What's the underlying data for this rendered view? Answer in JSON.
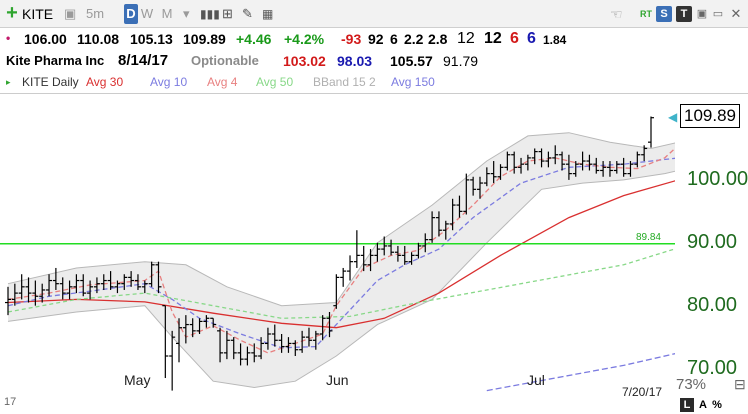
{
  "toolbar": {
    "symbol": "KITE",
    "add_icon": "plus-icon",
    "periods": [
      "5m",
      "D",
      "W",
      "M"
    ],
    "active_period": "D",
    "right_labels": [
      "RT",
      "S",
      "T"
    ]
  },
  "quote": {
    "open": "106.00",
    "high": "110.08",
    "low": "105.13",
    "close": "109.89",
    "change": "+4.46",
    "change_pct": "+4.2%",
    "v1": "-93",
    "v2": "92",
    "v3": "6",
    "v4": "2.2",
    "v5": "2.8",
    "v6": "12",
    "v7": "12",
    "v8": "6",
    "v9": "6",
    "v10": "1.84"
  },
  "info": {
    "name": "Kite Pharma Inc",
    "date": "8/14/17",
    "optionable": "Optionable",
    "a": "103.02",
    "b": "98.03",
    "c": "105.57",
    "d": "91.79"
  },
  "legend": {
    "title": "KITE Daily",
    "items": [
      "Avg 30",
      "Avg 10",
      "Avg 4",
      "Avg 50",
      "BBand 15 2",
      "Avg 150"
    ],
    "colors": [
      "#d93030",
      "#7b7be0",
      "#e88080",
      "#88d888",
      "#b0b0b0",
      "#7b7be0"
    ]
  },
  "chart_data": {
    "type": "ohlc",
    "line_label": "89.84",
    "line_value": 89.84,
    "price_label": "109.89",
    "y_ticks": [
      "100.00",
      "90.00",
      "80.00",
      "70.00"
    ],
    "x_ticks": [
      "May",
      "Jun",
      "Jul"
    ],
    "date_label": "7/20/17",
    "ylim": [
      65.8,
      113.5
    ],
    "bars": [
      {
        "o": 80.5,
        "h": 83.0,
        "l": 78.5,
        "c": 81.0
      },
      {
        "o": 81.0,
        "h": 83.5,
        "l": 80.0,
        "c": 82.0
      },
      {
        "o": 82.0,
        "h": 85.0,
        "l": 81.0,
        "c": 83.0
      },
      {
        "o": 83.0,
        "h": 84.5,
        "l": 80.5,
        "c": 82.0
      },
      {
        "o": 82.0,
        "h": 84.0,
        "l": 80.0,
        "c": 81.5
      },
      {
        "o": 81.5,
        "h": 83.5,
        "l": 80.5,
        "c": 82.5
      },
      {
        "o": 82.5,
        "h": 85.0,
        "l": 81.5,
        "c": 84.0
      },
      {
        "o": 84.0,
        "h": 86.0,
        "l": 82.5,
        "c": 83.5
      },
      {
        "o": 83.5,
        "h": 84.5,
        "l": 81.0,
        "c": 82.0
      },
      {
        "o": 82.0,
        "h": 84.0,
        "l": 81.0,
        "c": 83.0
      },
      {
        "o": 83.0,
        "h": 85.0,
        "l": 82.0,
        "c": 84.0
      },
      {
        "o": 84.0,
        "h": 85.0,
        "l": 81.5,
        "c": 82.0
      },
      {
        "o": 82.0,
        "h": 84.0,
        "l": 81.0,
        "c": 83.0
      },
      {
        "o": 83.0,
        "h": 84.5,
        "l": 82.0,
        "c": 83.5
      },
      {
        "o": 83.5,
        "h": 85.0,
        "l": 82.5,
        "c": 84.0
      },
      {
        "o": 84.0,
        "h": 85.5,
        "l": 82.5,
        "c": 83.0
      },
      {
        "o": 83.0,
        "h": 84.0,
        "l": 82.0,
        "c": 83.5
      },
      {
        "o": 83.5,
        "h": 85.0,
        "l": 82.5,
        "c": 84.5
      },
      {
        "o": 84.5,
        "h": 85.5,
        "l": 83.0,
        "c": 84.0
      },
      {
        "o": 84.0,
        "h": 85.0,
        "l": 82.5,
        "c": 83.0
      },
      {
        "o": 83.0,
        "h": 84.0,
        "l": 82.0,
        "c": 83.5
      },
      {
        "o": 83.5,
        "h": 87.0,
        "l": 83.0,
        "c": 86.5
      },
      {
        "o": 86.5,
        "h": 87.0,
        "l": 82.0,
        "c": 83.0
      },
      {
        "o": 80.0,
        "h": 80.0,
        "l": 68.5,
        "c": 72.0
      },
      {
        "o": 72.0,
        "h": 76.0,
        "l": 66.5,
        "c": 75.0
      },
      {
        "o": 74.0,
        "h": 78.0,
        "l": 71.0,
        "c": 76.5
      },
      {
        "o": 76.5,
        "h": 78.5,
        "l": 74.0,
        "c": 77.0
      },
      {
        "o": 77.0,
        "h": 78.0,
        "l": 75.0,
        "c": 76.0
      },
      {
        "o": 76.0,
        "h": 78.0,
        "l": 75.5,
        "c": 77.5
      },
      {
        "o": 77.5,
        "h": 78.5,
        "l": 76.5,
        "c": 78.0
      },
      {
        "o": 78.0,
        "h": 78.0,
        "l": 76.5,
        "c": 77.0
      },
      {
        "o": 76.0,
        "h": 76.5,
        "l": 71.0,
        "c": 72.5
      },
      {
        "o": 72.5,
        "h": 76.0,
        "l": 71.5,
        "c": 74.5
      },
      {
        "o": 74.5,
        "h": 75.0,
        "l": 71.5,
        "c": 72.5
      },
      {
        "o": 72.5,
        "h": 74.0,
        "l": 70.5,
        "c": 71.5
      },
      {
        "o": 71.5,
        "h": 73.5,
        "l": 70.5,
        "c": 72.5
      },
      {
        "o": 72.5,
        "h": 74.0,
        "l": 71.0,
        "c": 72.0
      },
      {
        "o": 72.0,
        "h": 75.0,
        "l": 71.5,
        "c": 74.0
      },
      {
        "o": 74.0,
        "h": 76.5,
        "l": 73.0,
        "c": 75.5
      },
      {
        "o": 75.5,
        "h": 77.0,
        "l": 73.5,
        "c": 74.5
      },
      {
        "o": 74.5,
        "h": 75.5,
        "l": 72.5,
        "c": 73.5
      },
      {
        "o": 73.5,
        "h": 75.0,
        "l": 72.5,
        "c": 74.0
      },
      {
        "o": 74.0,
        "h": 74.5,
        "l": 72.0,
        "c": 73.0
      },
      {
        "o": 73.0,
        "h": 76.0,
        "l": 72.5,
        "c": 75.0
      },
      {
        "o": 75.0,
        "h": 76.5,
        "l": 73.5,
        "c": 74.5
      },
      {
        "o": 74.5,
        "h": 76.0,
        "l": 73.0,
        "c": 75.5
      },
      {
        "o": 75.5,
        "h": 78.5,
        "l": 74.5,
        "c": 78.0
      },
      {
        "o": 78.0,
        "h": 79.0,
        "l": 75.0,
        "c": 76.0
      },
      {
        "o": 80.0,
        "h": 85.0,
        "l": 79.5,
        "c": 84.5
      },
      {
        "o": 84.5,
        "h": 86.0,
        "l": 83.0,
        "c": 85.5
      },
      {
        "o": 85.5,
        "h": 88.0,
        "l": 84.0,
        "c": 87.0
      },
      {
        "o": 87.0,
        "h": 92.0,
        "l": 86.0,
        "c": 88.0
      },
      {
        "o": 88.0,
        "h": 89.5,
        "l": 85.5,
        "c": 86.5
      },
      {
        "o": 86.5,
        "h": 89.0,
        "l": 85.5,
        "c": 88.0
      },
      {
        "o": 88.0,
        "h": 90.0,
        "l": 87.0,
        "c": 89.0
      },
      {
        "o": 89.0,
        "h": 91.0,
        "l": 88.0,
        "c": 89.5
      },
      {
        "o": 89.5,
        "h": 90.5,
        "l": 88.0,
        "c": 88.5
      },
      {
        "o": 88.5,
        "h": 89.5,
        "l": 87.0,
        "c": 88.0
      },
      {
        "o": 88.0,
        "h": 89.5,
        "l": 86.5,
        "c": 87.0
      },
      {
        "o": 87.0,
        "h": 88.5,
        "l": 86.5,
        "c": 88.0
      },
      {
        "o": 88.0,
        "h": 90.0,
        "l": 87.5,
        "c": 89.5
      },
      {
        "o": 89.5,
        "h": 91.5,
        "l": 88.5,
        "c": 90.5
      },
      {
        "o": 90.5,
        "h": 95.0,
        "l": 90.0,
        "c": 94.0
      },
      {
        "o": 94.0,
        "h": 95.0,
        "l": 91.0,
        "c": 92.0
      },
      {
        "o": 92.0,
        "h": 93.5,
        "l": 90.5,
        "c": 93.0
      },
      {
        "o": 93.0,
        "h": 97.0,
        "l": 92.0,
        "c": 96.0
      },
      {
        "o": 96.0,
        "h": 97.5,
        "l": 94.0,
        "c": 95.0
      },
      {
        "o": 95.0,
        "h": 101.0,
        "l": 94.5,
        "c": 100.0
      },
      {
        "o": 100.0,
        "h": 100.5,
        "l": 97.5,
        "c": 98.5
      },
      {
        "o": 98.5,
        "h": 100.5,
        "l": 97.0,
        "c": 99.5
      },
      {
        "o": 99.5,
        "h": 102.0,
        "l": 99.0,
        "c": 101.0
      },
      {
        "o": 101.0,
        "h": 103.0,
        "l": 99.5,
        "c": 100.5
      },
      {
        "o": 100.5,
        "h": 102.5,
        "l": 100.0,
        "c": 102.0
      },
      {
        "o": 102.0,
        "h": 104.5,
        "l": 101.5,
        "c": 104.0
      },
      {
        "o": 104.0,
        "h": 104.5,
        "l": 101.0,
        "c": 102.0
      },
      {
        "o": 102.0,
        "h": 103.5,
        "l": 101.0,
        "c": 102.5
      },
      {
        "o": 102.5,
        "h": 104.0,
        "l": 101.5,
        "c": 103.5
      },
      {
        "o": 103.5,
        "h": 105.0,
        "l": 102.5,
        "c": 104.5
      },
      {
        "o": 104.5,
        "h": 105.0,
        "l": 102.0,
        "c": 103.0
      },
      {
        "o": 103.0,
        "h": 104.5,
        "l": 102.0,
        "c": 103.5
      },
      {
        "o": 103.5,
        "h": 105.5,
        "l": 102.5,
        "c": 104.0
      },
      {
        "o": 104.0,
        "h": 104.5,
        "l": 101.5,
        "c": 102.5
      },
      {
        "o": 102.5,
        "h": 104.0,
        "l": 100.0,
        "c": 101.0
      },
      {
        "o": 101.0,
        "h": 103.0,
        "l": 100.5,
        "c": 102.5
      },
      {
        "o": 102.5,
        "h": 104.5,
        "l": 101.5,
        "c": 103.0
      },
      {
        "o": 103.0,
        "h": 104.0,
        "l": 101.5,
        "c": 102.5
      },
      {
        "o": 102.5,
        "h": 103.5,
        "l": 101.0,
        "c": 101.5
      },
      {
        "o": 101.5,
        "h": 103.0,
        "l": 100.5,
        "c": 102.0
      },
      {
        "o": 102.0,
        "h": 103.0,
        "l": 100.5,
        "c": 101.5
      },
      {
        "o": 101.5,
        "h": 103.0,
        "l": 101.0,
        "c": 102.5
      },
      {
        "o": 102.5,
        "h": 103.5,
        "l": 100.5,
        "c": 101.0
      },
      {
        "o": 101.0,
        "h": 103.0,
        "l": 100.5,
        "c": 102.5
      },
      {
        "o": 102.5,
        "h": 104.5,
        "l": 102.0,
        "c": 104.0
      },
      {
        "o": 104.0,
        "h": 105.5,
        "l": 103.0,
        "c": 105.0
      },
      {
        "o": 106.0,
        "h": 110.08,
        "l": 105.13,
        "c": 109.89
      }
    ],
    "ma": [
      {
        "name": "Avg 30",
        "color": "#d93030",
        "dash": "",
        "pts": [
          [
            0,
            80.5
          ],
          [
            10,
            81.0
          ],
          [
            20,
            80.6
          ],
          [
            30,
            78.8
          ],
          [
            40,
            77.2
          ],
          [
            48,
            76.5
          ],
          [
            55,
            78.0
          ],
          [
            63,
            82.0
          ],
          [
            72,
            88.0
          ],
          [
            82,
            94.0
          ],
          [
            90,
            97.5
          ],
          [
            98,
            100.0
          ]
        ]
      },
      {
        "name": "Avg 10",
        "color": "#7b7be0",
        "dash": "5,3",
        "pts": [
          [
            0,
            80.0
          ],
          [
            6,
            81.5
          ],
          [
            12,
            82.3
          ],
          [
            20,
            83.5
          ],
          [
            24,
            81.0
          ],
          [
            28,
            78.0
          ],
          [
            34,
            75.5
          ],
          [
            40,
            73.3
          ],
          [
            45,
            73.5
          ],
          [
            48,
            77.0
          ],
          [
            54,
            84.0
          ],
          [
            58,
            86.5
          ],
          [
            63,
            89.0
          ],
          [
            68,
            94.0
          ],
          [
            75,
            99.5
          ],
          [
            82,
            102.0
          ],
          [
            90,
            102.5
          ],
          [
            98,
            103.5
          ]
        ]
      },
      {
        "name": "Avg 4",
        "color": "#e88080",
        "dash": "5,3",
        "pts": [
          [
            0,
            81.0
          ],
          [
            6,
            82.0
          ],
          [
            12,
            83.3
          ],
          [
            20,
            84.0
          ],
          [
            22,
            85.5
          ],
          [
            24,
            79.0
          ],
          [
            26,
            75.0
          ],
          [
            30,
            76.8
          ],
          [
            34,
            74.5
          ],
          [
            38,
            72.5
          ],
          [
            42,
            74.0
          ],
          [
            46,
            75.5
          ],
          [
            48,
            80.0
          ],
          [
            52,
            86.0
          ],
          [
            56,
            88.0
          ],
          [
            60,
            88.8
          ],
          [
            64,
            92.0
          ],
          [
            68,
            96.0
          ],
          [
            72,
            100.5
          ],
          [
            76,
            103.0
          ],
          [
            80,
            103.5
          ],
          [
            84,
            102.5
          ],
          [
            88,
            102.0
          ],
          [
            92,
            101.8
          ],
          [
            96,
            103.5
          ],
          [
            98,
            105.5
          ]
        ]
      },
      {
        "name": "Avg 50",
        "color": "#88d888",
        "dash": "4,3",
        "pts": [
          [
            0,
            79.0
          ],
          [
            10,
            81.0
          ],
          [
            20,
            82.0
          ],
          [
            30,
            80.0
          ],
          [
            40,
            78.0
          ],
          [
            50,
            78.3
          ],
          [
            60,
            80.5
          ],
          [
            70,
            82.5
          ],
          [
            80,
            84.5
          ],
          [
            90,
            86.5
          ],
          [
            98,
            89.2
          ]
        ]
      },
      {
        "name": "Avg 150",
        "color": "#7b7be0",
        "dash": "6,3",
        "pts": [
          [
            70,
            66.5
          ],
          [
            80,
            68.5
          ],
          [
            90,
            70.5
          ],
          [
            98,
            72.5
          ]
        ]
      }
    ],
    "bb_upper": [
      [
        0,
        83.5
      ],
      [
        10,
        86.0
      ],
      [
        20,
        87.0
      ],
      [
        26,
        86.5
      ],
      [
        32,
        83.0
      ],
      [
        40,
        80.0
      ],
      [
        48,
        80.5
      ],
      [
        54,
        90.0
      ],
      [
        62,
        96.0
      ],
      [
        70,
        103.0
      ],
      [
        76,
        107.0
      ],
      [
        82,
        107.5
      ],
      [
        88,
        106.0
      ],
      [
        94,
        105.0
      ],
      [
        98,
        106.0
      ]
    ],
    "bb_lower": [
      [
        0,
        77.5
      ],
      [
        10,
        79.0
      ],
      [
        20,
        80.0
      ],
      [
        24,
        75.0
      ],
      [
        30,
        68.0
      ],
      [
        36,
        67.0
      ],
      [
        42,
        68.0
      ],
      [
        48,
        72.0
      ],
      [
        54,
        77.0
      ],
      [
        62,
        81.0
      ],
      [
        70,
        90.0
      ],
      [
        78,
        98.5
      ],
      [
        84,
        99.5
      ],
      [
        90,
        100.0
      ],
      [
        96,
        101.0
      ],
      [
        98,
        101.5
      ]
    ]
  },
  "bottom": {
    "pct": "73%",
    "left_marker": "17",
    "l_btn": "L",
    "a_btn": "A",
    "pct_btn": "%"
  }
}
